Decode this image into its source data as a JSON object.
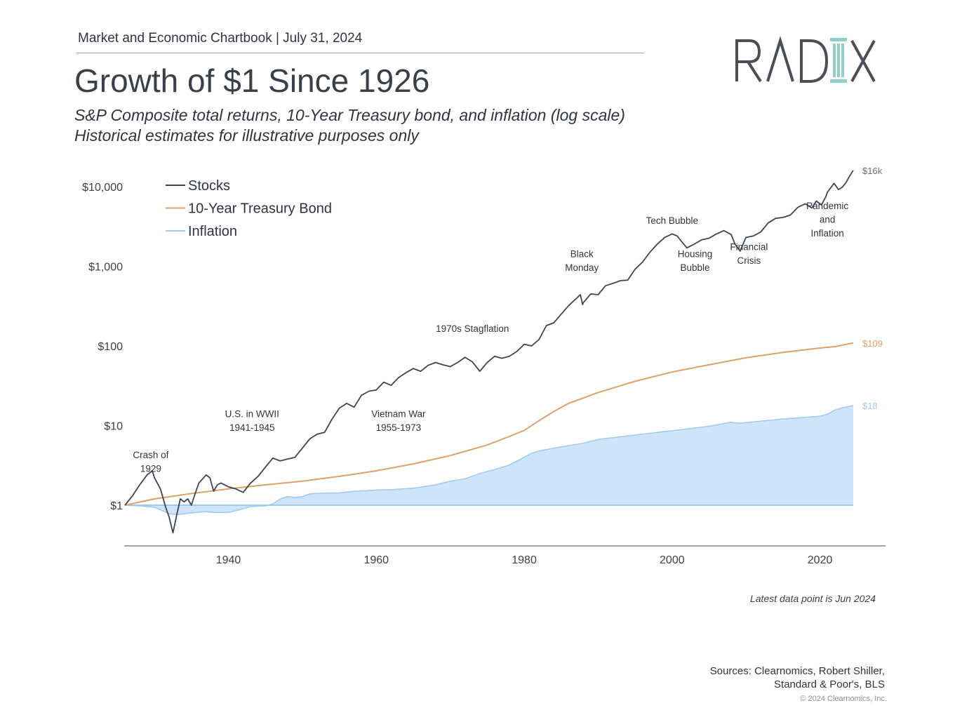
{
  "header": {
    "chartbook": "Market and Economic Chartbook | July 31, 2024",
    "title": "Growth of $1 Since 1926",
    "subtitle_1": "S&P Composite total returns, 10-Year Treasury bond, and inflation (log scale)",
    "subtitle_2": "Historical estimates for illustrative purposes only",
    "logo_text": "RADIX"
  },
  "colors": {
    "stocks": "#3b4654",
    "bond": "#e0a068",
    "inflation_fill": "#cfe4f8",
    "inflation_line": "#9ccaf2",
    "text": "#3a4049"
  },
  "chart_data": {
    "type": "line",
    "scale": "log",
    "xlim": [
      1926,
      2024.5
    ],
    "ylim": [
      0.35,
      25000
    ],
    "y_ticks": [
      {
        "value": 1,
        "label": "$1"
      },
      {
        "value": 10,
        "label": "$10"
      },
      {
        "value": 100,
        "label": "$100"
      },
      {
        "value": 1000,
        "label": "$1,000"
      },
      {
        "value": 10000,
        "label": "$10,000"
      }
    ],
    "x_ticks": [
      {
        "value": 1940,
        "label": "1940"
      },
      {
        "value": 1960,
        "label": "1960"
      },
      {
        "value": 1980,
        "label": "1980"
      },
      {
        "value": 2000,
        "label": "2000"
      },
      {
        "value": 2020,
        "label": "2020"
      }
    ],
    "legend_position": "top-left",
    "series": [
      {
        "name": "Stocks",
        "end_label": "$16k",
        "points": [
          [
            1926,
            1.0
          ],
          [
            1927,
            1.3
          ],
          [
            1928,
            1.8
          ],
          [
            1929,
            2.4
          ],
          [
            1929.7,
            2.7
          ],
          [
            1930,
            2.2
          ],
          [
            1930.8,
            1.6
          ],
          [
            1931.5,
            0.95
          ],
          [
            1932,
            0.7
          ],
          [
            1932.5,
            0.45
          ],
          [
            1933,
            0.75
          ],
          [
            1933.5,
            1.2
          ],
          [
            1934,
            1.1
          ],
          [
            1934.5,
            1.2
          ],
          [
            1935,
            1.0
          ],
          [
            1935.5,
            1.4
          ],
          [
            1936,
            1.9
          ],
          [
            1937,
            2.4
          ],
          [
            1937.5,
            2.2
          ],
          [
            1938,
            1.5
          ],
          [
            1938.5,
            1.8
          ],
          [
            1939,
            1.9
          ],
          [
            1940,
            1.7
          ],
          [
            1941,
            1.6
          ],
          [
            1942,
            1.45
          ],
          [
            1943,
            1.9
          ],
          [
            1944,
            2.3
          ],
          [
            1945,
            3.0
          ],
          [
            1946,
            3.9
          ],
          [
            1947,
            3.6
          ],
          [
            1948,
            3.8
          ],
          [
            1949,
            4.0
          ],
          [
            1950,
            5.2
          ],
          [
            1951,
            6.8
          ],
          [
            1952,
            7.8
          ],
          [
            1953,
            8.2
          ],
          [
            1954,
            12
          ],
          [
            1955,
            16.5
          ],
          [
            1956,
            19
          ],
          [
            1957,
            17
          ],
          [
            1958,
            24
          ],
          [
            1959,
            27
          ],
          [
            1960,
            28
          ],
          [
            1961,
            35
          ],
          [
            1962,
            32
          ],
          [
            1963,
            40
          ],
          [
            1964,
            46
          ],
          [
            1965,
            52
          ],
          [
            1966,
            48
          ],
          [
            1967,
            57
          ],
          [
            1968,
            62
          ],
          [
            1969,
            58
          ],
          [
            1970,
            55
          ],
          [
            1971,
            62
          ],
          [
            1972,
            72
          ],
          [
            1973,
            63
          ],
          [
            1974,
            48
          ],
          [
            1975,
            62
          ],
          [
            1976,
            74
          ],
          [
            1977,
            70
          ],
          [
            1978,
            74
          ],
          [
            1979,
            85
          ],
          [
            1980,
            105
          ],
          [
            1981,
            100
          ],
          [
            1982,
            120
          ],
          [
            1983,
            180
          ],
          [
            1984,
            195
          ],
          [
            1985,
            250
          ],
          [
            1986,
            320
          ],
          [
            1987.6,
            440
          ],
          [
            1987.9,
            330
          ],
          [
            1988,
            350
          ],
          [
            1989,
            450
          ],
          [
            1990,
            440
          ],
          [
            1991,
            570
          ],
          [
            1992,
            610
          ],
          [
            1993,
            660
          ],
          [
            1994,
            670
          ],
          [
            1995,
            920
          ],
          [
            1996,
            1130
          ],
          [
            1997,
            1500
          ],
          [
            1998,
            1900
          ],
          [
            1999,
            2300
          ],
          [
            2000,
            2550
          ],
          [
            2000.7,
            2400
          ],
          [
            2001,
            2200
          ],
          [
            2002,
            1700
          ],
          [
            2003,
            1900
          ],
          [
            2004,
            2150
          ],
          [
            2005,
            2250
          ],
          [
            2006,
            2550
          ],
          [
            2007,
            2800
          ],
          [
            2008,
            2500
          ],
          [
            2008.5,
            1900
          ],
          [
            2009.2,
            1550
          ],
          [
            2009.8,
            2100
          ],
          [
            2010,
            2300
          ],
          [
            2011,
            2400
          ],
          [
            2012,
            2700
          ],
          [
            2013,
            3500
          ],
          [
            2014,
            4000
          ],
          [
            2015,
            4100
          ],
          [
            2016,
            4400
          ],
          [
            2017,
            5500
          ],
          [
            2018,
            6100
          ],
          [
            2018.9,
            5400
          ],
          [
            2019.5,
            6600
          ],
          [
            2020.2,
            5900
          ],
          [
            2020.8,
            7500
          ],
          [
            2021,
            8500
          ],
          [
            2021.9,
            11000
          ],
          [
            2022.5,
            9200
          ],
          [
            2023,
            9800
          ],
          [
            2023.5,
            11200
          ],
          [
            2024,
            13500
          ],
          [
            2024.5,
            16000
          ]
        ]
      },
      {
        "name": "10-Year Treasury Bond",
        "end_label": "$109",
        "points": [
          [
            1926,
            1.0
          ],
          [
            1930,
            1.2
          ],
          [
            1935,
            1.4
          ],
          [
            1940,
            1.6
          ],
          [
            1945,
            1.8
          ],
          [
            1950,
            2.0
          ],
          [
            1955,
            2.3
          ],
          [
            1960,
            2.7
          ],
          [
            1965,
            3.3
          ],
          [
            1970,
            4.2
          ],
          [
            1975,
            5.7
          ],
          [
            1978,
            7.3
          ],
          [
            1980,
            8.7
          ],
          [
            1982,
            11.5
          ],
          [
            1984,
            15
          ],
          [
            1986,
            19
          ],
          [
            1990,
            26
          ],
          [
            1995,
            36
          ],
          [
            2000,
            47
          ],
          [
            2005,
            58
          ],
          [
            2010,
            71
          ],
          [
            2015,
            83
          ],
          [
            2020,
            94
          ],
          [
            2022,
            98
          ],
          [
            2024.5,
            109
          ]
        ]
      },
      {
        "name": "Inflation",
        "end_label": "$18",
        "points": [
          [
            1926,
            1.0
          ],
          [
            1928,
            0.98
          ],
          [
            1930,
            0.94
          ],
          [
            1931,
            0.86
          ],
          [
            1932,
            0.78
          ],
          [
            1933,
            0.76
          ],
          [
            1935,
            0.8
          ],
          [
            1937,
            0.83
          ],
          [
            1938,
            0.81
          ],
          [
            1940,
            0.81
          ],
          [
            1942,
            0.9
          ],
          [
            1943,
            0.96
          ],
          [
            1945,
            0.98
          ],
          [
            1946,
            1.04
          ],
          [
            1947,
            1.2
          ],
          [
            1948,
            1.28
          ],
          [
            1949,
            1.25
          ],
          [
            1950,
            1.28
          ],
          [
            1951,
            1.39
          ],
          [
            1953,
            1.42
          ],
          [
            1955,
            1.43
          ],
          [
            1957,
            1.49
          ],
          [
            1960,
            1.55
          ],
          [
            1962,
            1.57
          ],
          [
            1965,
            1.63
          ],
          [
            1968,
            1.8
          ],
          [
            1970,
            2.0
          ],
          [
            1972,
            2.15
          ],
          [
            1974,
            2.5
          ],
          [
            1976,
            2.8
          ],
          [
            1978,
            3.2
          ],
          [
            1980,
            4.0
          ],
          [
            1981,
            4.5
          ],
          [
            1982,
            4.8
          ],
          [
            1985,
            5.4
          ],
          [
            1988,
            6.0
          ],
          [
            1990,
            6.7
          ],
          [
            1995,
            7.6
          ],
          [
            2000,
            8.6
          ],
          [
            2005,
            9.8
          ],
          [
            2008,
            11.0
          ],
          [
            2009,
            10.7
          ],
          [
            2010,
            10.9
          ],
          [
            2015,
            12.1
          ],
          [
            2020,
            13.1
          ],
          [
            2021,
            13.9
          ],
          [
            2022,
            15.6
          ],
          [
            2023,
            16.7
          ],
          [
            2024.5,
            17.8
          ]
        ]
      }
    ],
    "annotations": [
      {
        "text": [
          "Crash of",
          "1929"
        ],
        "x": 1929.5,
        "y": 3.9
      },
      {
        "text": [
          "U.S. in WWII",
          "1941-1945"
        ],
        "x": 1943.2,
        "y": 12.8
      },
      {
        "text": [
          "Vietnam War",
          "1955-1973"
        ],
        "x": 1963,
        "y": 12.8
      },
      {
        "text": [
          "1970s Stagflation"
        ],
        "x": 1973,
        "y": 150
      },
      {
        "text": [
          "Black",
          "Monday"
        ],
        "x": 1987.8,
        "y": 1300
      },
      {
        "text": [
          "Tech Bubble"
        ],
        "x": 2000,
        "y": 3400
      },
      {
        "text": [
          "Housing",
          "Bubble"
        ],
        "x": 2003.1,
        "y": 1300
      },
      {
        "text": [
          "Financial",
          "Crisis"
        ],
        "x": 2010.4,
        "y": 1600
      },
      {
        "text": [
          "Pandemic",
          "and",
          "Inflation"
        ],
        "x": 2021,
        "y": 5200
      }
    ]
  },
  "footer": {
    "latest_note": "Latest data point is Jun 2024",
    "sources_1": "Sources: Clearnomics, Robert Shiller,",
    "sources_2": "Standard & Poor's, BLS",
    "copyright": "© 2024 Clearnomics, Inc."
  }
}
